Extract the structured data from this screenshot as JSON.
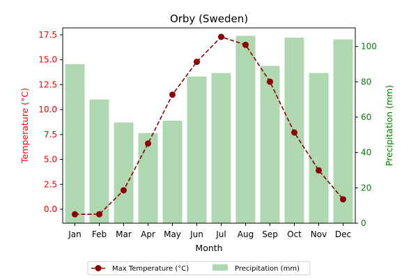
{
  "chart_data": {
    "type": "bar+line",
    "title": "Orby (Sweden)",
    "xlabel": "Month",
    "categories": [
      "Jan",
      "Feb",
      "Mar",
      "Apr",
      "May",
      "Jun",
      "Jul",
      "Aug",
      "Sep",
      "Oct",
      "Nov",
      "Dec"
    ],
    "y_left": {
      "label": "Temperature (°C)",
      "range": [
        -1.4,
        18.2
      ],
      "ticks": [
        0.0,
        2.5,
        5.0,
        7.5,
        10.0,
        12.5,
        15.0,
        17.5
      ],
      "tick_labels": [
        "0.0",
        "2.5",
        "5.0",
        "7.5",
        "10.0",
        "12.5",
        "15.0",
        "17.5"
      ],
      "color": "#ff0000"
    },
    "y_right": {
      "label": "Precipitation (mm)",
      "range": [
        0,
        110.5
      ],
      "ticks": [
        0,
        20,
        40,
        60,
        80,
        100
      ],
      "tick_labels": [
        "0",
        "20",
        "40",
        "60",
        "80",
        "100"
      ],
      "color": "#008000"
    },
    "series": [
      {
        "name": "Max Temperature (°C)",
        "kind": "line",
        "axis": "left",
        "color": "#8b0000",
        "line_style": "dashed",
        "marker": "circle",
        "values": [
          -0.5,
          -0.5,
          1.9,
          6.6,
          11.5,
          14.8,
          17.3,
          16.5,
          12.8,
          7.7,
          3.9,
          1.0
        ]
      },
      {
        "name": "Precipitation (mm)",
        "kind": "bar",
        "axis": "right",
        "color": "#b0d8b0",
        "values": [
          90,
          70,
          57,
          51,
          58,
          83,
          85,
          106,
          89,
          105,
          85,
          104
        ]
      }
    ],
    "legend": {
      "position": "bottom-center",
      "entries": [
        "Max Temperature (°C)",
        "Precipitation (mm)"
      ]
    },
    "grid": false
  }
}
